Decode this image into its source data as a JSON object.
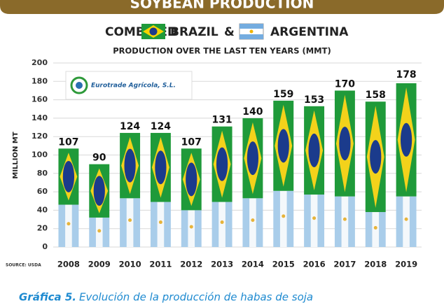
{
  "chart_data": {
    "type": "bar",
    "title": "SOYBEAN PRODUCTION",
    "subtitle_lead": "COMBINED",
    "conjunction": "&",
    "subtitle2": "PRODUCTION OVER THE LAST TEN YEARS (MMT)",
    "ylabel": "MILLION MT",
    "source": "SOURCE: USDA",
    "logo": "Eurotrade Agrícola, S.L.",
    "caption_label": "Gráfica 5.",
    "caption_text": "Evolución de la producción de habas de soja",
    "categories": [
      "2008",
      "2009",
      "2010",
      "2011",
      "2012",
      "2013",
      "2014",
      "2015",
      "2016",
      "2017",
      "2018",
      "2019"
    ],
    "series": [
      {
        "name": "ARGENTINA",
        "color": "#a9cdea",
        "values": [
          46,
          32,
          53,
          49,
          40,
          49,
          53,
          61,
          57,
          55,
          38,
          55
        ]
      },
      {
        "name": "BRAZIL",
        "color": "#1f9a3a",
        "values": [
          61,
          58,
          71,
          75,
          67,
          82,
          87,
          98,
          96,
          115,
          120,
          123
        ]
      }
    ],
    "totals": [
      107,
      90,
      124,
      124,
      107,
      131,
      140,
      159,
      153,
      170,
      158,
      178
    ],
    "ylim": [
      0,
      200
    ],
    "yticks": [
      0,
      20,
      40,
      60,
      80,
      100,
      120,
      140,
      160,
      180,
      200
    ],
    "grid": true
  }
}
